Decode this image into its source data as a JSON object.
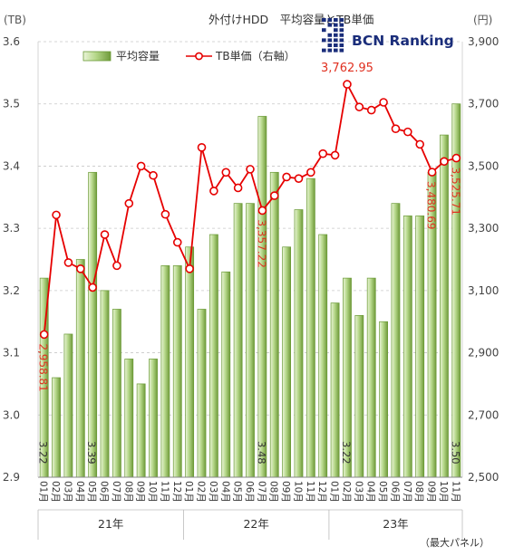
{
  "chart_data": {
    "type": "bar",
    "title": "外付けHDD　平均容量とTB単価",
    "logo_text": "BCN Ranking",
    "left_unit": "(TB)",
    "right_unit": "(円)",
    "footnote": "（最大パネル）",
    "left_ylim": [
      2.9,
      3.6
    ],
    "left_ticks": [
      "2.9",
      "3.0",
      "3.1",
      "3.2",
      "3.3",
      "3.4",
      "3.5",
      "3.6"
    ],
    "right_ylim": [
      2500,
      3900
    ],
    "right_ticks": [
      "2,500",
      "2,700",
      "2,900",
      "3,100",
      "3,300",
      "3,500",
      "3,700",
      "3,900"
    ],
    "categories": [
      "01月",
      "02月",
      "03月",
      "04月",
      "05月",
      "06月",
      "07月",
      "08月",
      "09月",
      "10月",
      "11月",
      "12月",
      "01月",
      "02月",
      "03月",
      "04月",
      "05月",
      "06月",
      "07月",
      "08月",
      "09月",
      "10月",
      "11月",
      "12月",
      "01月",
      "02月",
      "03月",
      "04月",
      "05月",
      "06月",
      "07月",
      "08月",
      "09月",
      "10月",
      "11月"
    ],
    "years": [
      {
        "label": "21年",
        "start": 0,
        "end": 11
      },
      {
        "label": "22年",
        "start": 12,
        "end": 23
      },
      {
        "label": "23年",
        "start": 24,
        "end": 34
      }
    ],
    "grid": "horizontal-dashed",
    "legend_position": "top",
    "colors": {
      "bar_light": "#eaf4d8",
      "bar_mid": "#b6d88a",
      "bar_dark": "#6f9a3a",
      "bar_edge": "#6a9a36",
      "line": "#e60000",
      "label_red": "#e03020",
      "axis": "#888888",
      "grid": "#c8c8c8",
      "logo": "#1a2d7a"
    },
    "series": [
      {
        "name": "平均容量",
        "axis": "left",
        "values": [
          3.22,
          3.06,
          3.13,
          3.25,
          3.39,
          3.2,
          3.17,
          3.09,
          3.05,
          3.09,
          3.24,
          3.24,
          3.27,
          3.17,
          3.29,
          3.23,
          3.34,
          3.34,
          3.48,
          3.39,
          3.27,
          3.33,
          3.38,
          3.29,
          3.18,
          3.22,
          3.16,
          3.22,
          3.15,
          3.34,
          3.32,
          3.32,
          3.39,
          3.45,
          3.5
        ]
      },
      {
        "name": "TB単価（右軸）",
        "axis": "right",
        "values": [
          2958.81,
          3343,
          3190,
          3170,
          3110,
          3280,
          3180,
          3380,
          3500,
          3470,
          3345,
          3255,
          3170,
          3560,
          3420,
          3480,
          3430,
          3490,
          3357.22,
          3405,
          3465,
          3460,
          3480,
          3540,
          3535,
          3762.95,
          3690,
          3680,
          3705,
          3620,
          3610,
          3570,
          3480.69,
          3515,
          3525.71
        ]
      }
    ],
    "bar_labels": [
      {
        "index": 0,
        "text": "3.22"
      },
      {
        "index": 4,
        "text": "3.39"
      },
      {
        "index": 18,
        "text": "3.48"
      },
      {
        "index": 25,
        "text": "3.22"
      },
      {
        "index": 34,
        "text": "3.50"
      }
    ],
    "line_labels": [
      {
        "index": 0,
        "text": "2,958.81",
        "style": "vertical"
      },
      {
        "index": 18,
        "text": "3,357.22",
        "style": "vertical"
      },
      {
        "index": 25,
        "text": "3,762.95",
        "style": "horizontal"
      },
      {
        "index": 32,
        "text": "3,480.69",
        "style": "vertical"
      },
      {
        "index": 34,
        "text": "3,525.71",
        "style": "vertical"
      }
    ]
  }
}
